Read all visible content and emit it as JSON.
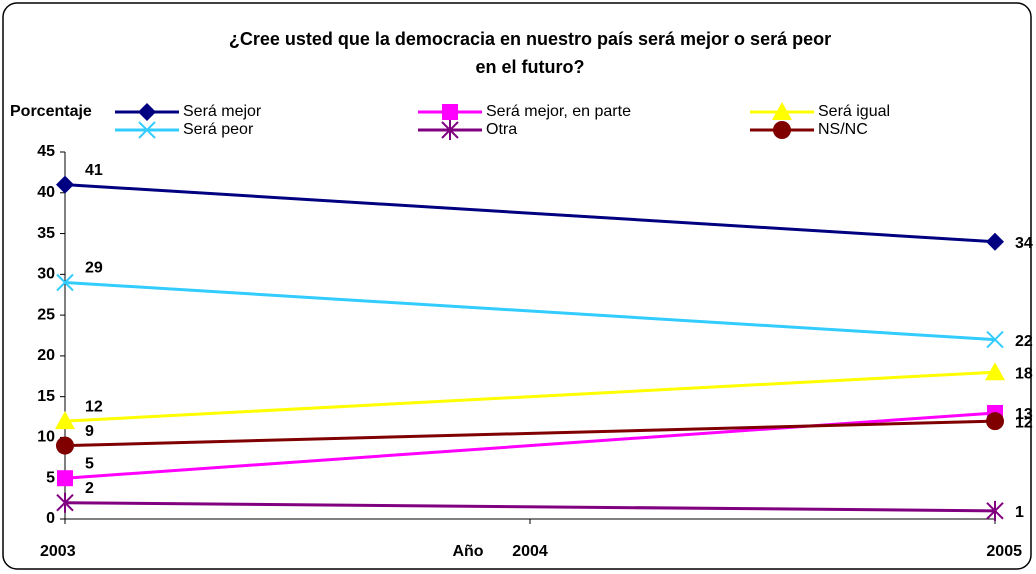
{
  "chart_data": {
    "type": "line",
    "title": "¿Cree usted que la democracia en nuestro país será mejor o será peor en el futuro?",
    "x_label": "Año",
    "y_label": "Porcentaje",
    "x": [
      2003,
      2005
    ],
    "xlim": [
      2003,
      2005
    ],
    "xticks": [
      2003,
      2004,
      2005
    ],
    "ylim": [
      0,
      45
    ],
    "yticks": [
      0,
      5,
      10,
      15,
      20,
      25,
      30,
      35,
      40,
      45
    ],
    "series": [
      {
        "name": "Será mejor",
        "color": "#000080",
        "marker": "diamond",
        "values": [
          41,
          34
        ]
      },
      {
        "name": "Será mejor, en parte",
        "color": "#ff00ff",
        "marker": "square",
        "values": [
          5,
          13
        ]
      },
      {
        "name": "Será igual",
        "color": "#ffff00",
        "marker": "triangle",
        "values": [
          12,
          18
        ]
      },
      {
        "name": "Será peor",
        "color": "#33ccff",
        "marker": "x",
        "values": [
          29,
          22
        ]
      },
      {
        "name": "Otra",
        "color": "#800080",
        "marker": "star",
        "values": [
          2,
          1
        ]
      },
      {
        "name": "NS/NC",
        "color": "#800000",
        "marker": "circle",
        "values": [
          9,
          12
        ]
      }
    ]
  }
}
